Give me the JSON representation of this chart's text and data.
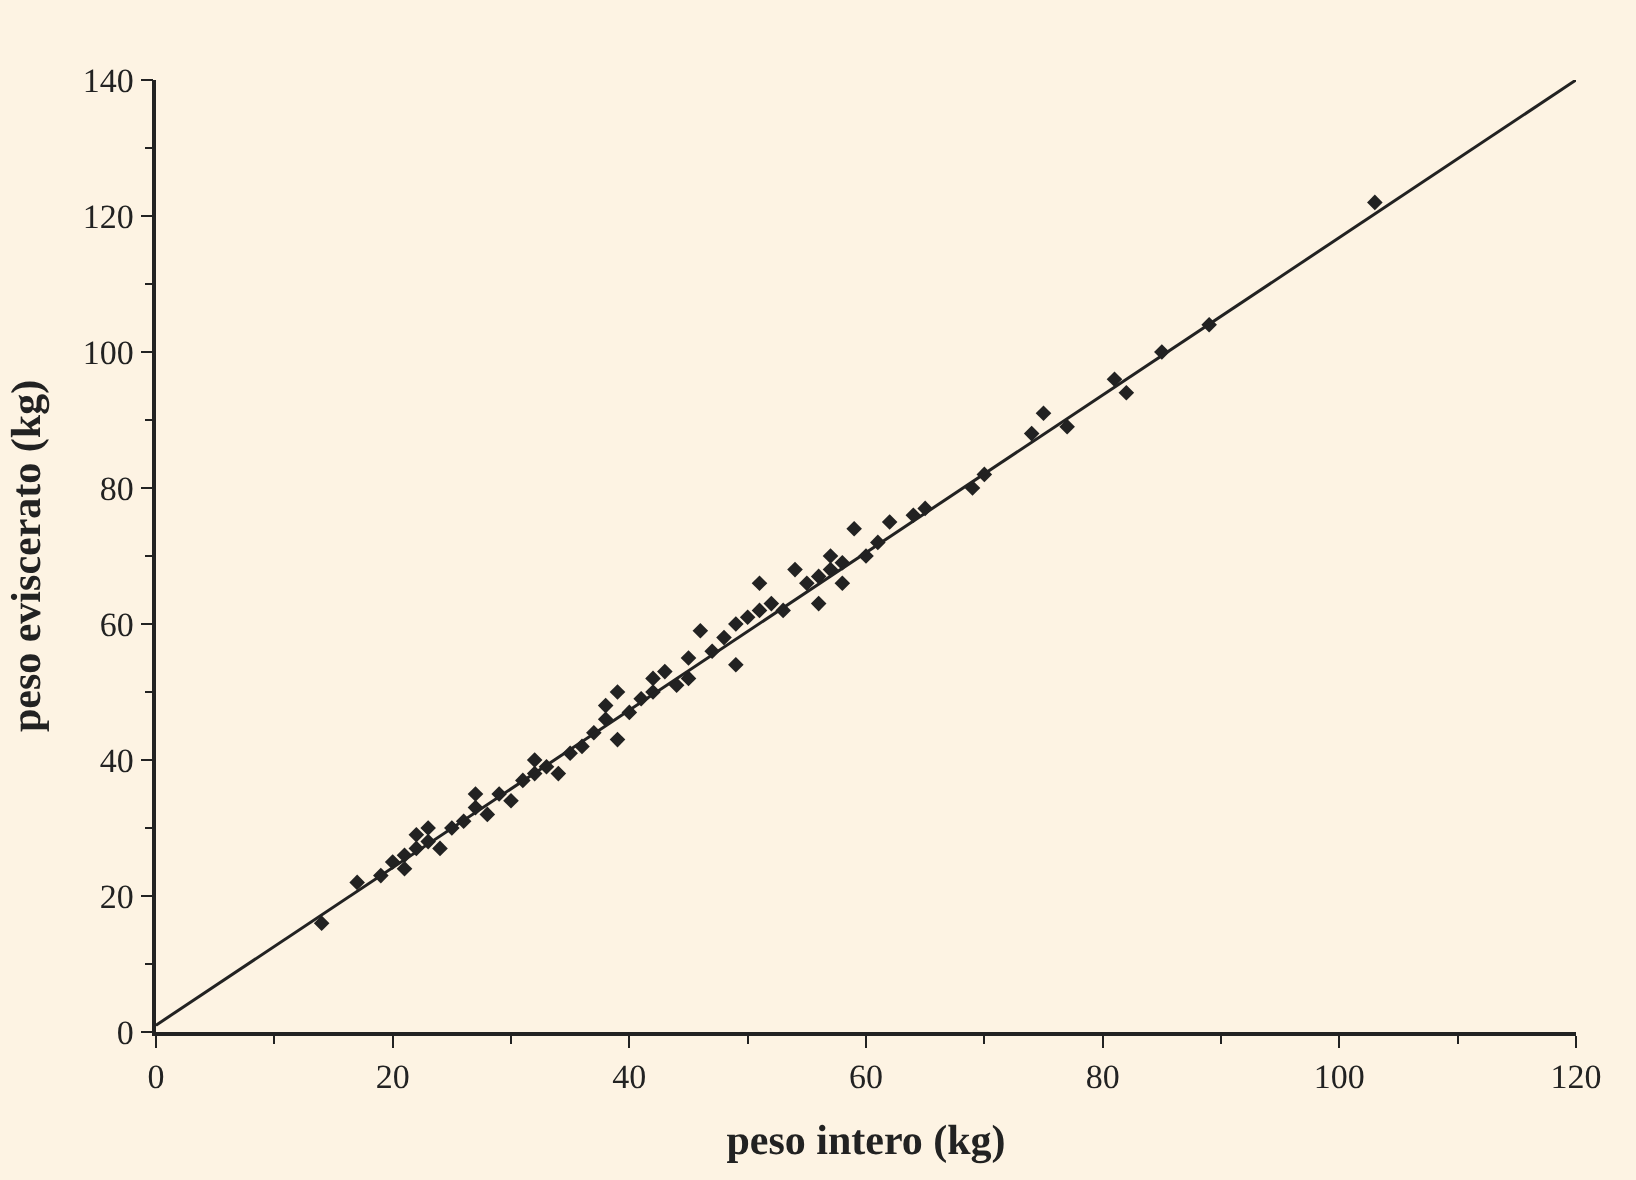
{
  "chart_data": {
    "type": "scatter",
    "xlabel": "peso intero (kg)",
    "ylabel": "peso eviscerato (kg)",
    "xlim": [
      0,
      120
    ],
    "ylim": [
      0,
      140
    ],
    "xticks": [
      0,
      20,
      40,
      60,
      80,
      100,
      120
    ],
    "yticks": [
      0,
      20,
      40,
      60,
      80,
      100,
      120,
      140
    ],
    "marker": "diamond",
    "series": [
      {
        "color": "#222222",
        "x": [
          14,
          17,
          19,
          20,
          21,
          21,
          22,
          22,
          23,
          23,
          24,
          25,
          26,
          27,
          27,
          28,
          29,
          30,
          31,
          32,
          32,
          33,
          34,
          35,
          36,
          37,
          38,
          38,
          39,
          39,
          40,
          41,
          42,
          42,
          43,
          44,
          45,
          45,
          46,
          47,
          48,
          49,
          49,
          50,
          51,
          51,
          52,
          53,
          54,
          55,
          56,
          56,
          57,
          57,
          58,
          58,
          59,
          60,
          61,
          62,
          64,
          65,
          69,
          70,
          74,
          75,
          77,
          81,
          82,
          85,
          89,
          103
        ],
        "values": [
          16,
          22,
          23,
          25,
          26,
          24,
          27,
          29,
          28,
          30,
          27,
          30,
          31,
          33,
          35,
          32,
          35,
          34,
          37,
          38,
          40,
          39,
          38,
          41,
          42,
          44,
          46,
          48,
          43,
          50,
          47,
          49,
          50,
          52,
          53,
          51,
          52,
          55,
          59,
          56,
          58,
          60,
          54,
          61,
          66,
          62,
          63,
          62,
          68,
          66,
          67,
          63,
          70,
          68,
          66,
          69,
          74,
          70,
          72,
          75,
          76,
          77,
          80,
          82,
          88,
          91,
          89,
          96,
          94,
          100,
          104,
          122
        ]
      },
      {
        "type": "line",
        "color": "#222222",
        "x": [
          0,
          120
        ],
        "values": [
          1,
          140
        ],
        "line_style": "solid",
        "marker": "none"
      }
    ]
  }
}
